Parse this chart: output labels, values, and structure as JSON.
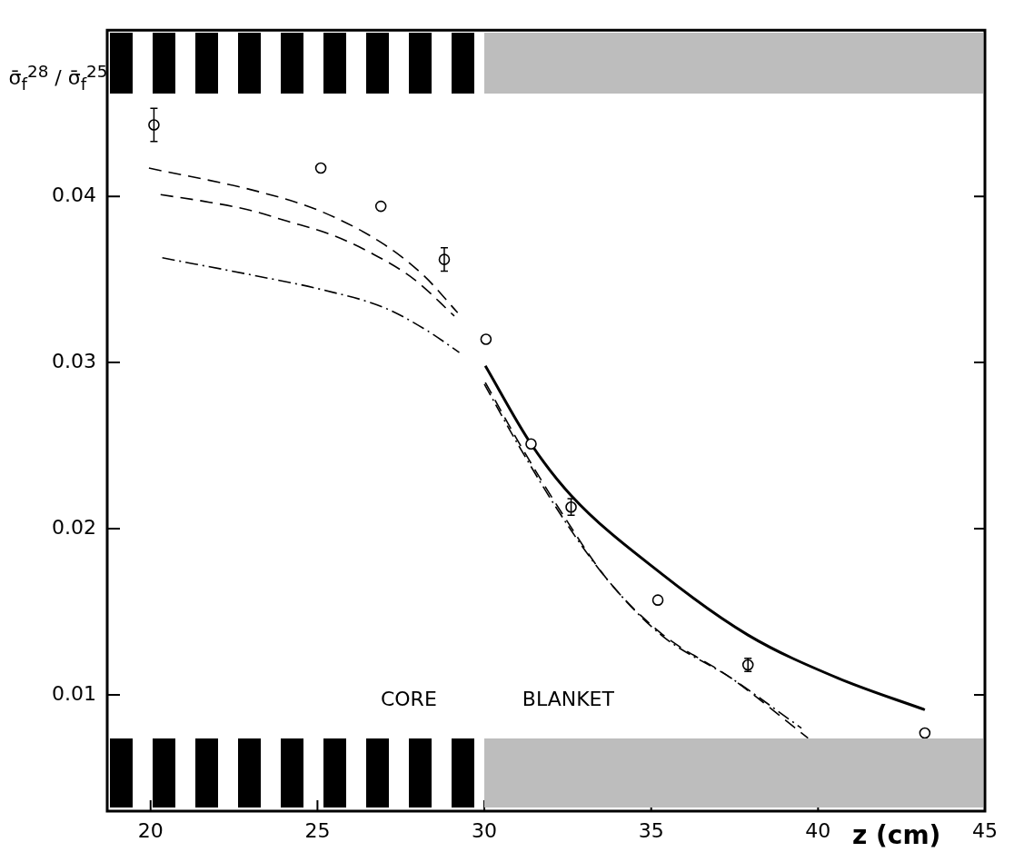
{
  "chart_data": {
    "type": "line",
    "ylabel": "σ̄$_{f}$$^{28}$ / σ̄$_{f}$$^{25}$",
    "xlabel": "z (cm)",
    "xlim": [
      18.7,
      45
    ],
    "xticks": [
      20,
      25,
      30,
      35,
      40,
      45
    ],
    "ylim": [
      0.003,
      0.05
    ],
    "yticks": [
      0.01,
      0.02,
      0.03,
      0.04
    ],
    "grid": false,
    "legend": false,
    "annotations": [
      "CORE",
      "BLANKET"
    ],
    "series": [
      {
        "type": "scatter",
        "color": "#000000",
        "marker": "circle",
        "x": [
          20.1,
          25.1,
          26.9,
          28.8,
          30.05,
          31.4,
          32.6,
          35.2,
          37.9,
          43.2
        ],
        "values": [
          0.0443,
          0.0417,
          0.0394,
          0.0362,
          0.0314,
          0.0251,
          0.0213,
          0.0157,
          0.0118,
          0.0077
        ],
        "errors": [
          0.001,
          null,
          null,
          0.0007,
          null,
          null,
          0.0005,
          null,
          0.0004,
          null
        ]
      },
      {
        "color": "#000000",
        "line_style": "dashed",
        "x": [
          19.95,
          23.2,
          25.1,
          27.0,
          28.2,
          29.2
        ],
        "values": [
          0.0417,
          0.0403,
          0.0391,
          0.0371,
          0.0352,
          0.033
        ]
      },
      {
        "color": "#000000",
        "line_style": "dashed",
        "x": [
          20.3,
          21.6,
          22.9,
          24.1,
          25.4,
          26.6,
          27.9,
          29.1
        ],
        "values": [
          0.0401,
          0.0397,
          0.0392,
          0.0385,
          0.0377,
          0.0366,
          0.035,
          0.0328
        ]
      },
      {
        "color": "#000000",
        "line_style": "dashdot",
        "x": [
          20.35,
          23.2,
          25.1,
          27.0,
          28.3,
          29.25
        ],
        "values": [
          0.0363,
          0.0352,
          0.0344,
          0.0333,
          0.0319,
          0.0306
        ]
      },
      {
        "color": "#000000",
        "line_style": "solid",
        "x": [
          30.03,
          31.4,
          32.6,
          35.3,
          37.9,
          40.6,
          43.2
        ],
        "values": [
          0.0298,
          0.0251,
          0.022,
          0.0173,
          0.0136,
          0.011,
          0.0091
        ]
      },
      {
        "color": "#000000",
        "line_style": "dashed",
        "x": [
          30.03,
          31.0,
          32.4,
          33.7,
          35.3,
          37.4,
          39.7
        ],
        "values": [
          0.0288,
          0.0253,
          0.0207,
          0.0169,
          0.0137,
          0.011,
          0.0074
        ]
      },
      {
        "color": "#000000",
        "line_style": "dashdot",
        "x": [
          30.0,
          31.0,
          32.4,
          33.7,
          35.3,
          37.4,
          39.5
        ],
        "values": [
          0.0287,
          0.0251,
          0.0205,
          0.0169,
          0.0136,
          0.011,
          0.008
        ]
      }
    ]
  }
}
